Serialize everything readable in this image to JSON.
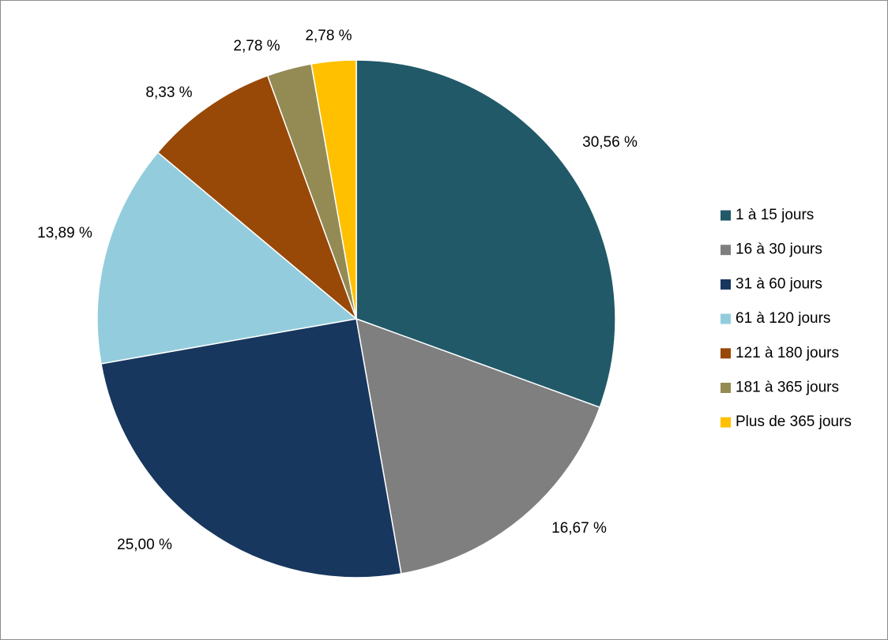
{
  "chart_data": {
    "type": "pie",
    "categories": [
      "1 à 15 jours",
      "16 à 30 jours",
      "31 à 60 jours",
      "61 à 120 jours",
      "121 à 180 jours",
      "181 à 365 jours",
      "Plus de 365 jours"
    ],
    "values": [
      30.56,
      16.67,
      25.0,
      13.89,
      8.33,
      2.78,
      2.78
    ],
    "data_labels": [
      "30,56 %",
      "16,67 %",
      "25,00 %",
      "13,89 %",
      "8,33 %",
      "2,78 %",
      "2,78 %"
    ],
    "colors": [
      "#215968",
      "#7f7f7f",
      "#17375e",
      "#93cddd",
      "#984807",
      "#948a54",
      "#ffc000"
    ],
    "title": "",
    "legend_position": "right",
    "start_angle": "12 o'clock",
    "direction": "clockwise"
  }
}
